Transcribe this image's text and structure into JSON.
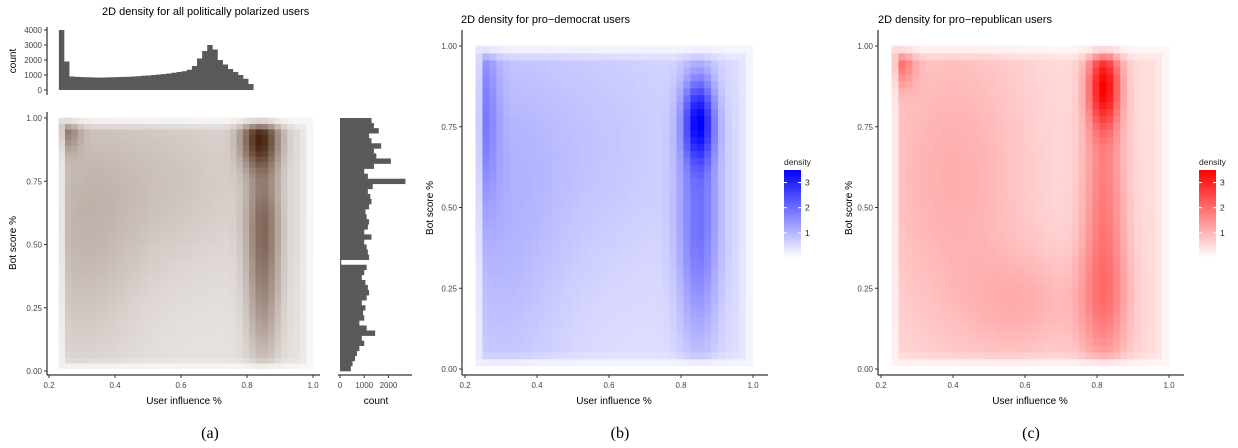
{
  "figure": {
    "captions": [
      "(a)",
      "(b)",
      "(c)"
    ]
  },
  "chart_data": [
    {
      "id": "panel_a",
      "type": "heatmap",
      "title": "2D density for all politically polarized users",
      "xlabel": "User influence %",
      "ylabel": "Bot score %",
      "xlim": [
        0.2,
        1.0
      ],
      "ylim": [
        0.0,
        1.0
      ],
      "xticks": [
        "0.2",
        "0.4",
        "0.6",
        "0.8",
        "1.0"
      ],
      "yticks": [
        "0.00",
        "0.25",
        "0.50",
        "0.75",
        "1.00"
      ],
      "color": "#4a2410",
      "density_peaks": [
        {
          "x": 0.84,
          "y": 0.92,
          "sx": 0.04,
          "sy": 0.08,
          "w": 1.0
        },
        {
          "x": 0.85,
          "y": 0.62,
          "sx": 0.035,
          "sy": 0.18,
          "w": 0.55
        },
        {
          "x": 0.85,
          "y": 0.3,
          "sx": 0.035,
          "sy": 0.2,
          "w": 0.4
        },
        {
          "x": 0.25,
          "y": 0.96,
          "sx": 0.03,
          "sy": 0.06,
          "w": 0.5
        },
        {
          "x": 0.3,
          "y": 0.55,
          "sx": 0.12,
          "sy": 0.35,
          "w": 0.2
        },
        {
          "x": 0.55,
          "y": 0.75,
          "sx": 0.2,
          "sy": 0.25,
          "w": 0.15
        }
      ],
      "top_histogram": {
        "ylabel": "count",
        "yticks": [
          "0",
          "1000",
          "2000",
          "3000",
          "4000"
        ],
        "ylim": [
          0,
          4000
        ],
        "bin_start": 0.23,
        "bin_width": 0.0155,
        "counts": [
          4000,
          1900,
          900,
          880,
          860,
          850,
          840,
          830,
          830,
          840,
          850,
          860,
          870,
          880,
          900,
          920,
          950,
          970,
          1000,
          1030,
          1060,
          1100,
          1150,
          1200,
          1250,
          1350,
          1600,
          2100,
          2600,
          3000,
          2700,
          2000,
          1700,
          1400,
          1200,
          1000,
          750,
          400
        ]
      },
      "right_histogram": {
        "xlabel": "count",
        "xticks": [
          "0",
          "1000",
          "2000"
        ],
        "xlim": [
          0,
          2600
        ],
        "bin_start": 0.0,
        "bin_width": 0.02,
        "counts": [
          450,
          520,
          620,
          700,
          800,
          1000,
          900,
          1450,
          1100,
          800,
          1000,
          950,
          1050,
          900,
          1100,
          1200,
          1150,
          1050,
          900,
          1000,
          1100,
          50,
          1200,
          1150,
          1100,
          1000,
          1300,
          1000,
          1150,
          1200,
          1100,
          1050,
          1200,
          1300,
          1250,
          1150,
          1350,
          2700,
          1150,
          1000,
          1400,
          2100,
          1500,
          1400,
          1700,
          1300,
          1200,
          1600,
          1400,
          1300
        ]
      }
    },
    {
      "id": "panel_b",
      "type": "heatmap",
      "title": "2D density for pro−democrat users",
      "xlabel": "User influence %",
      "ylabel": "Bot score %",
      "xlim": [
        0.2,
        1.0
      ],
      "ylim": [
        0.0,
        1.0
      ],
      "xticks": [
        "0.2",
        "0.4",
        "0.6",
        "0.8",
        "1.0"
      ],
      "yticks": [
        "0.00",
        "0.25",
        "0.50",
        "0.75",
        "1.00"
      ],
      "color": "#0000ff",
      "legend": {
        "title": "density",
        "labels": [
          "3",
          "2",
          "1"
        ],
        "values": [
          3,
          2,
          1
        ],
        "max": 3.5,
        "placement": "right"
      },
      "density_peaks": [
        {
          "x": 0.85,
          "y": 0.77,
          "sx": 0.03,
          "sy": 0.09,
          "w": 1.0
        },
        {
          "x": 0.85,
          "y": 0.45,
          "sx": 0.04,
          "sy": 0.25,
          "w": 0.55
        },
        {
          "x": 0.25,
          "y": 0.8,
          "sx": 0.03,
          "sy": 0.2,
          "w": 0.4
        },
        {
          "x": 0.3,
          "y": 0.45,
          "sx": 0.12,
          "sy": 0.4,
          "w": 0.18
        },
        {
          "x": 0.55,
          "y": 0.7,
          "sx": 0.2,
          "sy": 0.3,
          "w": 0.12
        }
      ]
    },
    {
      "id": "panel_c",
      "type": "heatmap",
      "title": "2D density for pro−republican users",
      "xlabel": "User influence %",
      "ylabel": "Bot score %",
      "xlim": [
        0.2,
        1.0
      ],
      "ylim": [
        0.0,
        1.0
      ],
      "xticks": [
        "0.2",
        "0.4",
        "0.6",
        "0.8",
        "1.0"
      ],
      "yticks": [
        "0.00",
        "0.25",
        "0.50",
        "0.75",
        "1.00"
      ],
      "color": "#ff0000",
      "legend": {
        "title": "density",
        "labels": [
          "3",
          "2",
          "1"
        ],
        "values": [
          3,
          2,
          1
        ],
        "max": 3.5,
        "placement": "right"
      },
      "density_peaks": [
        {
          "x": 0.82,
          "y": 0.88,
          "sx": 0.03,
          "sy": 0.09,
          "w": 1.0
        },
        {
          "x": 0.82,
          "y": 0.55,
          "sx": 0.04,
          "sy": 0.25,
          "w": 0.45
        },
        {
          "x": 0.82,
          "y": 0.2,
          "sx": 0.05,
          "sy": 0.15,
          "w": 0.35
        },
        {
          "x": 0.25,
          "y": 0.96,
          "sx": 0.03,
          "sy": 0.06,
          "w": 0.5
        },
        {
          "x": 0.4,
          "y": 0.6,
          "sx": 0.15,
          "sy": 0.35,
          "w": 0.22
        },
        {
          "x": 0.6,
          "y": 0.2,
          "sx": 0.12,
          "sy": 0.12,
          "w": 0.18
        }
      ]
    }
  ]
}
